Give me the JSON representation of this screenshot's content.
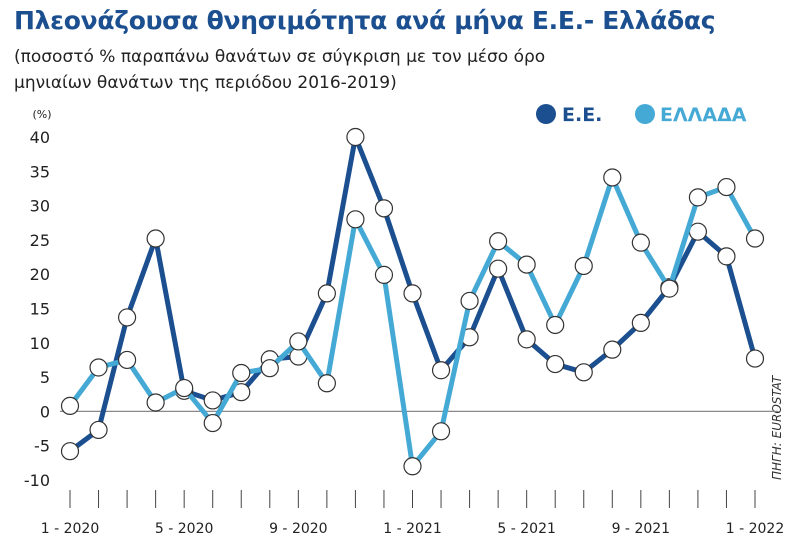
{
  "title": "Πλεονάζουσα θνησιμότητα ανά μήνα Ε.Ε.- Ελλάδας",
  "subtitle_line1": "(ποσοστό % παραπάνω θανάτων σε σύγκριση με τον μέσο όρο",
  "subtitle_line2": "μηνιαίων θανάτων της περιόδου 2016-2019)",
  "source": "ΠΗΓΗ: EUROSTAT",
  "colors": {
    "eu": "#1b4f8f",
    "greece": "#45a9d5",
    "marker_fill": "#ffffff",
    "grid_zero": "#888888",
    "axis_text": "#222222"
  },
  "chart_data": {
    "type": "line",
    "ylabel": "(%)",
    "ylim": [
      -10,
      40
    ],
    "yticks": [
      40,
      35,
      30,
      25,
      20,
      15,
      10,
      5,
      0,
      -5,
      -10
    ],
    "x_tick_labels": [
      {
        "index": 0,
        "label": "1 - 2020"
      },
      {
        "index": 4,
        "label": "5 - 2020"
      },
      {
        "index": 8,
        "label": "9 - 2020"
      },
      {
        "index": 12,
        "label": "1 - 2021"
      },
      {
        "index": 16,
        "label": "5 - 2021"
      },
      {
        "index": 20,
        "label": "9 - 2021"
      },
      {
        "index": 24,
        "label": "1 - 2022"
      }
    ],
    "x": [
      "1-2020",
      "2-2020",
      "3-2020",
      "4-2020",
      "5-2020",
      "6-2020",
      "7-2020",
      "8-2020",
      "9-2020",
      "10-2020",
      "11-2020",
      "12-2020",
      "1-2021",
      "2-2021",
      "3-2021",
      "4-2021",
      "5-2021",
      "6-2021",
      "7-2021",
      "8-2021",
      "9-2021",
      "10-2021",
      "11-2021",
      "12-2021",
      "1-2022"
    ],
    "legend_position": "top-right",
    "series": [
      {
        "name": "Ε.Ε.",
        "values": [
          -5.8,
          -2.7,
          13.7,
          25.2,
          3.0,
          1.6,
          2.8,
          7.6,
          8.0,
          17.2,
          40.0,
          29.6,
          17.2,
          6.0,
          10.8,
          20.8,
          10.5,
          6.9,
          5.7,
          9.0,
          12.9,
          18.1,
          26.2,
          22.6,
          7.7
        ]
      },
      {
        "name": "ΕΛΛΑΔΑ",
        "values": [
          0.8,
          6.4,
          7.5,
          1.3,
          3.4,
          -1.7,
          5.6,
          6.3,
          10.2,
          4.1,
          28.0,
          19.9,
          -8.0,
          -2.9,
          16.1,
          24.8,
          21.4,
          12.6,
          21.2,
          34.1,
          24.6,
          17.9,
          31.2,
          32.7,
          25.2
        ]
      }
    ]
  }
}
